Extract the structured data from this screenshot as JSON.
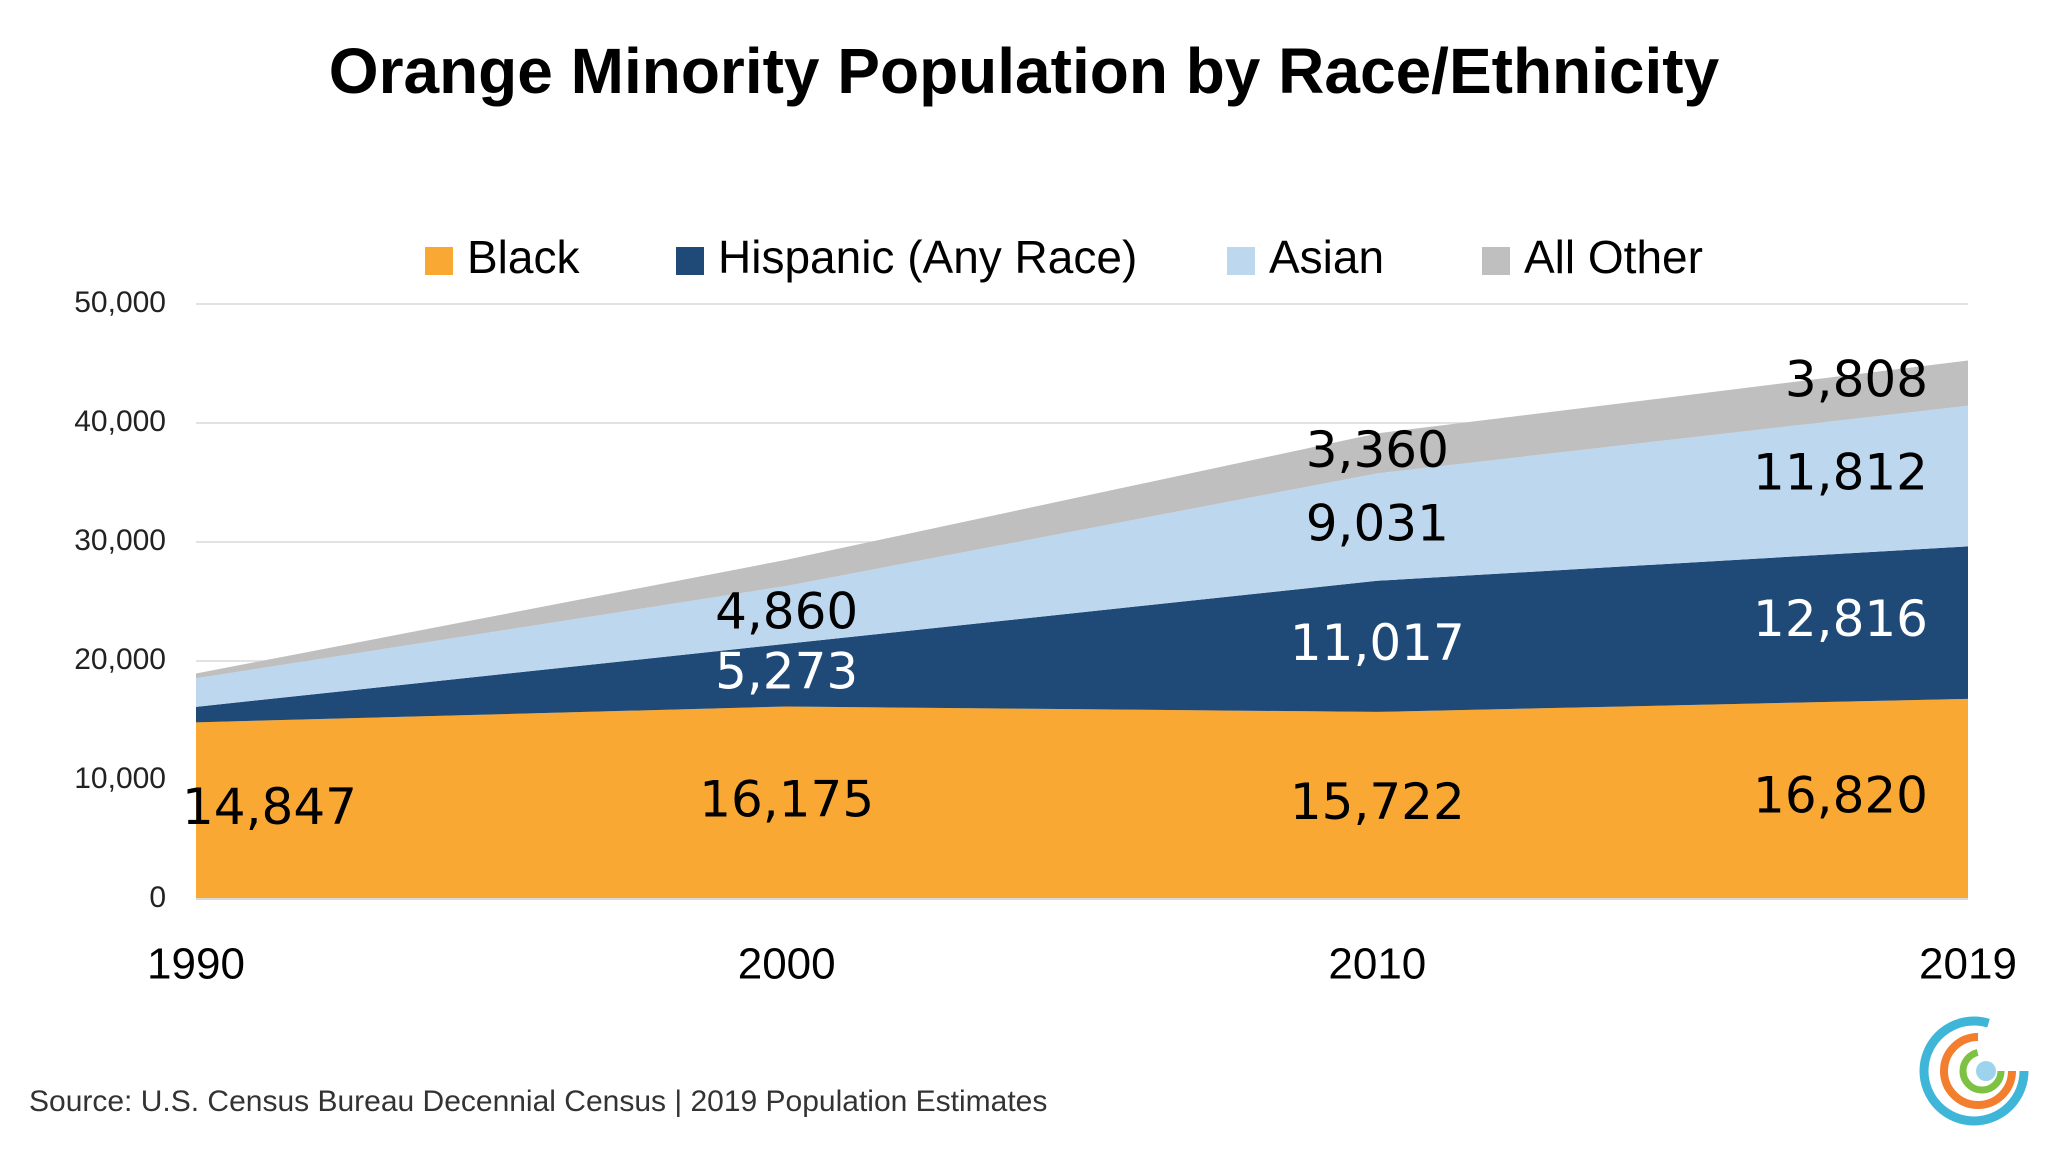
{
  "chart_data": {
    "type": "stacked-area",
    "title": "Orange Minority Population by Race/Ethnicity",
    "source": "Source: U.S. Census Bureau Decennial Census | 2019 Population Estimates",
    "categories": [
      "1990",
      "2000",
      "2010",
      "2019"
    ],
    "series": [
      {
        "name": "Black",
        "color": "#F9A833",
        "label_color": "#000000",
        "values": [
          14847,
          16175,
          15722,
          16820
        ],
        "value_labels": [
          "14,847",
          "16,175",
          "15,722",
          "16,820"
        ]
      },
      {
        "name": "Hispanic (Any Race)",
        "color": "#1F4A78",
        "label_color": "#FFFFFF",
        "values": [
          1300,
          5273,
          11017,
          12816
        ],
        "value_labels": [
          null,
          "5,273",
          "11,017",
          "12,816"
        ]
      },
      {
        "name": "Asian",
        "color": "#BDD7EE",
        "label_color": "#000000",
        "values": [
          2400,
          4860,
          9031,
          11812
        ],
        "value_labels": [
          null,
          "4,860",
          "9,031",
          "11,812"
        ]
      },
      {
        "name": "All Other",
        "color": "#BFBFBF",
        "label_color": "#000000",
        "values": [
          400,
          2200,
          3360,
          3808
        ],
        "value_labels": [
          null,
          null,
          "3,360",
          "3,808"
        ]
      }
    ],
    "ylim": [
      0,
      50000
    ],
    "yticks": [
      0,
      {
        "value": 10000,
        "label": "10,000"
      },
      {
        "value": 20000,
        "label": "20,000"
      },
      {
        "value": 30000,
        "label": "30,000"
      },
      {
        "value": 40000,
        "label": "40,000"
      },
      {
        "value": 50000,
        "label": "50,000"
      }
    ],
    "grid": true,
    "legend": "top"
  }
}
